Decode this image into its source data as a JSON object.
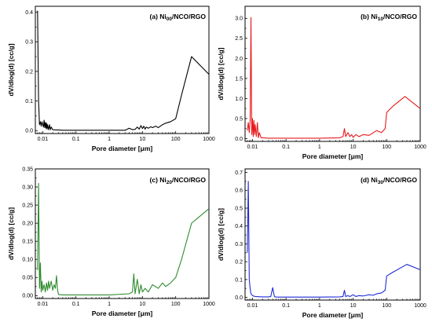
{
  "chart_data": [
    {
      "type": "line",
      "title_prefix": "(a) Ni",
      "title_sub": "00",
      "title_suffix": "/NCO/RGO",
      "xlabel": "Pore diameter [μm]",
      "ylabel": "dV/dlog(d) [cc/g]",
      "xscale": "log",
      "xlim": [
        0.006,
        1000
      ],
      "ylim": [
        -0.01,
        0.42
      ],
      "xticks": [
        0.01,
        0.1,
        1,
        10,
        100,
        1000
      ],
      "xtick_labels": [
        "0.01",
        "0.1",
        "1",
        "10",
        "100",
        "1000"
      ],
      "yticks": [
        0.0,
        0.1,
        0.2,
        0.3,
        0.4
      ],
      "ytick_labels": [
        "0.0",
        "0.1",
        "0.2",
        "0.3",
        "0.4"
      ],
      "color": "#000000",
      "series": [
        {
          "x": [
            0.007,
            0.0075,
            0.008,
            0.0085,
            0.009,
            0.0095,
            0.01,
            0.0105,
            0.011,
            0.0115,
            0.012,
            0.0125,
            0.013,
            0.0135,
            0.014,
            0.015,
            0.016,
            0.017,
            0.018,
            0.02,
            0.025,
            0.03,
            0.04,
            0.1,
            1,
            3,
            4,
            5,
            6,
            7,
            8,
            9,
            10,
            11,
            12,
            13,
            15,
            18,
            20,
            25,
            30,
            40,
            50,
            70,
            100,
            150,
            300,
            1000
          ],
          "y": [
            0.405,
            0.1,
            0.02,
            0.03,
            0.015,
            0.03,
            0.02,
            0.012,
            0.035,
            0.01,
            0.028,
            0.008,
            0.025,
            0.005,
            0.02,
            0.003,
            0.02,
            0.003,
            0.012,
            0.003,
            0.002,
            0.002,
            0.001,
            0.001,
            0.001,
            0.001,
            0.008,
            0.003,
            0.004,
            0.012,
            0.005,
            0.017,
            0.007,
            0.015,
            0.005,
            0.012,
            0.008,
            0.013,
            0.01,
            0.015,
            0.01,
            0.02,
            0.025,
            0.03,
            0.04,
            0.12,
            0.25,
            0.19
          ]
        }
      ]
    },
    {
      "type": "line",
      "title_prefix": "(b) Ni",
      "title_sub": "10",
      "title_suffix": "/NCO/RGO",
      "xlabel": "Pore diameter [μm]",
      "ylabel": "dV/dlog(d) [cc/g]",
      "xscale": "log",
      "xlim": [
        0.006,
        1000
      ],
      "ylim": [
        -0.07,
        3.3
      ],
      "xticks": [
        0.01,
        0.1,
        1,
        10,
        100,
        1000
      ],
      "xtick_labels": [
        "0.01",
        "0.1",
        "1",
        "10",
        "100",
        "1000"
      ],
      "yticks": [
        0.0,
        0.5,
        1.0,
        1.5,
        2.0,
        2.5,
        3.0
      ],
      "ytick_labels": [
        "0.0",
        "0.5",
        "1.0",
        "1.5",
        "2.0",
        "2.5",
        "3.0"
      ],
      "color": "#e8191e",
      "series": [
        {
          "x": [
            0.007,
            0.0075,
            0.008,
            0.0085,
            0.009,
            0.0095,
            0.01,
            0.0105,
            0.011,
            0.0115,
            0.012,
            0.013,
            0.014,
            0.015,
            0.016,
            0.018,
            0.02,
            0.03,
            0.1,
            1,
            4,
            5,
            5.5,
            6,
            7,
            8,
            9,
            10,
            12,
            15,
            20,
            30,
            50,
            70,
            90,
            100,
            150,
            350,
            1000
          ],
          "y": [
            0.2,
            0.4,
            0.15,
            0.45,
            3.02,
            0.1,
            0.5,
            0.05,
            0.45,
            0.1,
            0.35,
            0.05,
            0.4,
            0.02,
            0.15,
            0.02,
            0.02,
            0.01,
            0.01,
            0.01,
            0.02,
            0.05,
            0.25,
            0.05,
            0.15,
            0.05,
            0.1,
            0.03,
            0.1,
            0.05,
            0.1,
            0.08,
            0.2,
            0.15,
            0.25,
            0.65,
            0.8,
            1.05,
            0.75
          ]
        }
      ]
    },
    {
      "type": "line",
      "title_prefix": "(c) Ni",
      "title_sub": "20",
      "title_suffix": "/NCO/RGO",
      "xlabel": "Pore diameter [μm]",
      "ylabel": "dV/dlog(d) [cc/g]",
      "xscale": "log",
      "xlim": [
        0.006,
        1000
      ],
      "ylim": [
        -0.008,
        0.35
      ],
      "xticks": [
        0.01,
        0.1,
        1,
        10,
        100,
        1000
      ],
      "xtick_labels": [
        "0.01",
        "0.1",
        "1",
        "10",
        "100",
        "1000"
      ],
      "yticks": [
        0.0,
        0.05,
        0.1,
        0.15,
        0.2,
        0.25,
        0.3,
        0.35
      ],
      "ytick_labels": [
        "0.00",
        "0.05",
        "0.10",
        "0.15",
        "0.20",
        "0.25",
        "0.30",
        "0.35"
      ],
      "color": "#2e8b2e",
      "series": [
        {
          "x": [
            0.007,
            0.0075,
            0.008,
            0.0085,
            0.009,
            0.0095,
            0.01,
            0.011,
            0.012,
            0.013,
            0.014,
            0.015,
            0.016,
            0.018,
            0.02,
            0.022,
            0.024,
            0.026,
            0.028,
            0.03,
            0.04,
            0.1,
            1,
            4,
            5,
            5.5,
            6,
            7,
            8,
            9,
            10,
            12,
            15,
            20,
            30,
            40,
            50,
            70,
            100,
            150,
            300,
            1000
          ],
          "y": [
            0.07,
            0.31,
            0.02,
            0.09,
            0.01,
            0.04,
            0.015,
            0.03,
            0.01,
            0.035,
            0.015,
            0.04,
            0.02,
            0.04,
            0.015,
            0.03,
            0.02,
            0.055,
            0.015,
            0.003,
            0.002,
            0.002,
            0.002,
            0.005,
            0.01,
            0.06,
            0.005,
            0.045,
            0.005,
            0.03,
            0.01,
            0.02,
            0.01,
            0.03,
            0.02,
            0.035,
            0.025,
            0.035,
            0.05,
            0.1,
            0.2,
            0.24
          ]
        }
      ]
    },
    {
      "type": "line",
      "title_prefix": "(d) Ni",
      "title_sub": "30",
      "title_suffix": "/NCO/RGO",
      "xlabel": "Pore diameter [μm]",
      "ylabel": "dV/dlog(d) [cc/g]",
      "xscale": "log",
      "xlim": [
        0.006,
        1000
      ],
      "ylim": [
        -0.015,
        0.72
      ],
      "xticks": [
        0.01,
        0.1,
        1,
        10,
        100,
        1000
      ],
      "xtick_labels": [
        "0.01",
        "0.1",
        "1",
        "10",
        "100",
        "1000"
      ],
      "yticks": [
        0.0,
        0.1,
        0.2,
        0.3,
        0.4,
        0.5,
        0.6,
        0.7
      ],
      "ytick_labels": [
        "0.0",
        "0.1",
        "0.2",
        "0.3",
        "0.4",
        "0.5",
        "0.6",
        "0.7"
      ],
      "color": "#1f2bd6",
      "series": [
        {
          "x": [
            0.007,
            0.0075,
            0.008,
            0.0085,
            0.009,
            0.01,
            0.012,
            0.015,
            0.02,
            0.03,
            0.035,
            0.04,
            0.045,
            0.05,
            0.1,
            1,
            4,
            5,
            5.5,
            6,
            7,
            8,
            10,
            12,
            15,
            20,
            30,
            40,
            50,
            70,
            90,
            100,
            150,
            400,
            1000
          ],
          "y": [
            0.25,
            0.65,
            0.1,
            0.05,
            0.02,
            0.01,
            0.005,
            0.004,
            0.003,
            0.003,
            0.005,
            0.055,
            0.004,
            0.002,
            0.002,
            0.002,
            0.003,
            0.005,
            0.04,
            0.005,
            0.01,
            0.005,
            0.015,
            0.005,
            0.01,
            0.008,
            0.015,
            0.012,
            0.02,
            0.025,
            0.04,
            0.12,
            0.14,
            0.185,
            0.155
          ]
        }
      ]
    }
  ]
}
